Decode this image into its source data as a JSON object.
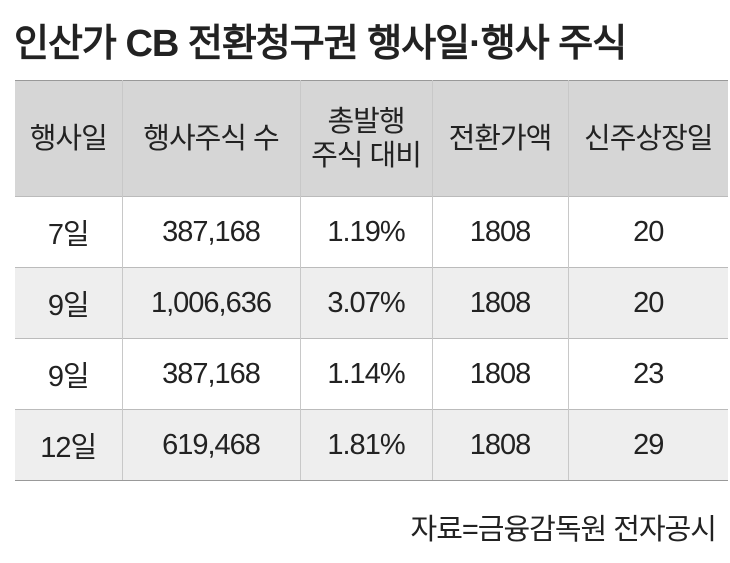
{
  "header": {
    "title": "인산가 CB 전환청구권 행사일·행사 주식"
  },
  "table": {
    "columns": [
      "행사일",
      "행사주식 수",
      "총발행\n주식 대비",
      "전환가액",
      "신주상장일"
    ],
    "rows": [
      [
        "7일",
        "387,168",
        "1.19%",
        "1808",
        "20"
      ],
      [
        "9일",
        "1,006,636",
        "3.07%",
        "1808",
        "20"
      ],
      [
        "9일",
        "387,168",
        "1.14%",
        "1808",
        "23"
      ],
      [
        "12일",
        "619,468",
        "1.81%",
        "1808",
        "29"
      ]
    ]
  },
  "footer": {
    "source": "자료=금융감독원 전자공시"
  }
}
